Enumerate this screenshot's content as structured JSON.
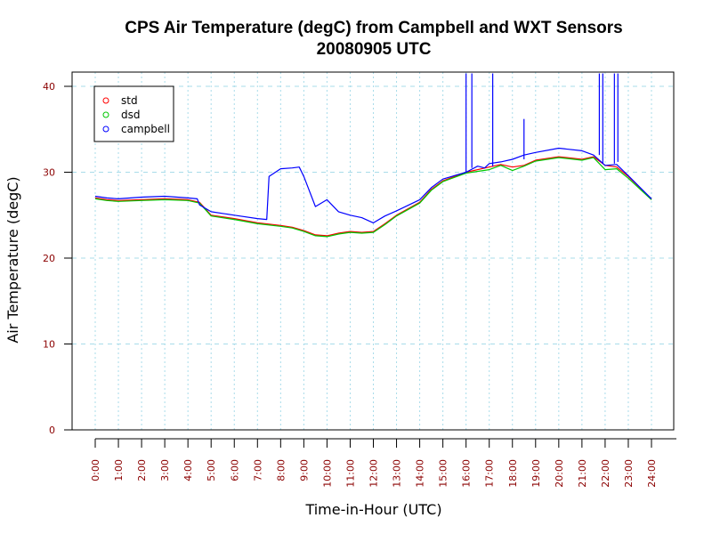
{
  "chart_data": {
    "type": "line",
    "title": "CPS Air Temperature (degC) from Campbell and WXT Sensors",
    "subtitle": "20080905  UTC",
    "xlabel": "Time-in-Hour (UTC)",
    "ylabel": "Air Temperature (degC)",
    "xlim": [
      0,
      24
    ],
    "ylim": [
      0,
      40
    ],
    "grid": true,
    "legend_position": "top-left",
    "x_ticks": [
      0,
      1,
      2,
      3,
      4,
      5,
      6,
      7,
      8,
      9,
      10,
      11,
      12,
      13,
      14,
      15,
      16,
      17,
      18,
      19,
      20,
      21,
      22,
      23,
      24
    ],
    "x_tick_labels": [
      "0:00",
      "1:00",
      "2:00",
      "3:00",
      "4:00",
      "5:00",
      "6:00",
      "7:00",
      "8:00",
      "9:00",
      "10:00",
      "11:00",
      "12:00",
      "13:00",
      "14:00",
      "15:00",
      "16:00",
      "17:00",
      "18:00",
      "19:00",
      "20:00",
      "21:00",
      "22:00",
      "23:00",
      "24:00"
    ],
    "y_ticks": [
      0,
      10,
      20,
      30,
      40
    ],
    "y_tick_labels": [
      "0",
      "10",
      "20",
      "30",
      "40"
    ],
    "series": [
      {
        "name": "std",
        "color": "#ff0000",
        "x": [
          0,
          0.5,
          1,
          2,
          3,
          4,
          4.5,
          5,
          6,
          7,
          8,
          8.5,
          9,
          9.5,
          10,
          10.5,
          11,
          11.5,
          12,
          12.5,
          13,
          14,
          14.5,
          15,
          16,
          17,
          17.5,
          18,
          18.5,
          19,
          20,
          21,
          21.5,
          22,
          22.5,
          23,
          24
        ],
        "y": [
          27,
          26.8,
          26.7,
          26.8,
          26.9,
          26.8,
          26.5,
          25,
          24.6,
          24.1,
          23.8,
          23.6,
          23.2,
          22.7,
          22.6,
          22.9,
          23.1,
          23.0,
          23.1,
          24.0,
          25.0,
          26.5,
          28.0,
          29.0,
          30.0,
          30.6,
          30.9,
          30.6,
          30.8,
          31.4,
          31.8,
          31.5,
          31.8,
          30.8,
          30.6,
          29.5,
          26.9
        ]
      },
      {
        "name": "dsd",
        "color": "#00c800",
        "x": [
          0,
          0.5,
          1,
          2,
          3,
          4,
          4.5,
          5,
          6,
          7,
          8,
          8.5,
          9,
          9.5,
          10,
          10.5,
          11,
          11.5,
          12,
          12.5,
          13,
          14,
          14.5,
          15,
          16,
          17,
          17.5,
          18,
          18.5,
          19,
          20,
          21,
          21.5,
          22,
          22.5,
          23,
          24
        ],
        "y": [
          26.9,
          26.7,
          26.6,
          26.7,
          26.8,
          26.7,
          26.4,
          24.9,
          24.5,
          24.0,
          23.7,
          23.5,
          23.1,
          22.6,
          22.5,
          22.8,
          23.0,
          22.9,
          23.0,
          23.9,
          24.9,
          26.4,
          27.9,
          28.9,
          29.9,
          30.3,
          30.8,
          30.2,
          30.7,
          31.3,
          31.7,
          31.4,
          31.7,
          30.3,
          30.4,
          29.3,
          26.8
        ]
      },
      {
        "name": "campbell",
        "color": "#0000ff",
        "x": [
          0,
          0.5,
          1,
          2,
          3,
          4,
          4.4,
          4.5,
          5,
          6,
          7,
          7.4,
          7.5,
          8,
          8.5,
          8.8,
          9,
          9.5,
          10,
          10.5,
          11,
          11.5,
          12,
          12.5,
          13,
          14,
          14.5,
          15,
          16,
          16.5,
          16.8,
          17,
          17.5,
          18,
          18.5,
          19,
          20,
          21,
          21.5,
          22,
          22.5,
          23,
          24
        ],
        "y": [
          27.2,
          27.0,
          26.9,
          27.1,
          27.2,
          27.0,
          26.9,
          26.2,
          25.4,
          25.0,
          24.6,
          24.5,
          29.5,
          30.4,
          30.5,
          30.6,
          29.5,
          26.0,
          26.8,
          25.4,
          25.0,
          24.7,
          24.1,
          24.9,
          25.5,
          26.8,
          28.2,
          29.2,
          30.0,
          30.7,
          30.5,
          31.0,
          31.2,
          31.5,
          32.0,
          32.3,
          32.8,
          32.5,
          32.0,
          30.8,
          30.9,
          29.6,
          26.9
        ]
      }
    ],
    "spikes": [
      {
        "series": "campbell",
        "x": 16.0,
        "y_from": 30.0,
        "y_to": 41.5
      },
      {
        "series": "campbell",
        "x": 16.25,
        "y_from": 30.5,
        "y_to": 41.5
      },
      {
        "series": "campbell",
        "x": 17.15,
        "y_from": 30.7,
        "y_to": 41.5
      },
      {
        "series": "campbell",
        "x": 18.5,
        "y_from": 31.5,
        "y_to": 36.2
      },
      {
        "series": "campbell",
        "x": 21.75,
        "y_from": 32.0,
        "y_to": 41.5
      },
      {
        "series": "campbell",
        "x": 21.9,
        "y_from": 31.0,
        "y_to": 41.5
      },
      {
        "series": "campbell",
        "x": 22.4,
        "y_from": 31.0,
        "y_to": 41.5
      },
      {
        "series": "campbell",
        "x": 22.55,
        "y_from": 31.2,
        "y_to": 41.5
      }
    ]
  }
}
